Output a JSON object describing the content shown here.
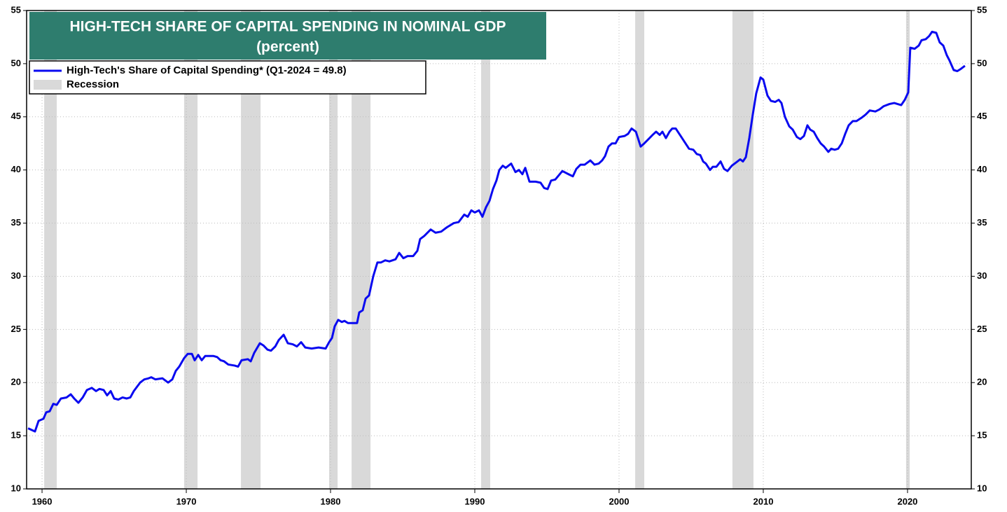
{
  "chart_data": {
    "type": "line",
    "title": "HIGH-TECH SHARE OF CAPITAL SPENDING IN NOMINAL GDP",
    "subtitle": "(percent)",
    "title_color": "#2e7d6e",
    "xlim": [
      1958.93,
      2024.42
    ],
    "xticks": [
      1960,
      1970,
      1980,
      1990,
      2000,
      2010,
      2020
    ],
    "ylim": [
      10,
      55
    ],
    "yticks": [
      10,
      15,
      20,
      25,
      30,
      35,
      40,
      45,
      50,
      55
    ],
    "y2lim": [
      10,
      55
    ],
    "y2ticks": [
      10,
      15,
      20,
      25,
      30,
      35,
      40,
      45,
      50,
      55
    ],
    "grid": true,
    "legend": "upper left",
    "shaded_regions": {
      "name": "Recession",
      "color": "#d9d9d9",
      "ranges": [
        [
          1960.15,
          1961.02
        ],
        [
          1969.85,
          1970.78
        ],
        [
          1973.79,
          1975.15
        ],
        [
          1979.9,
          1980.49
        ],
        [
          1981.46,
          1982.77
        ],
        [
          1990.44,
          1991.07
        ],
        [
          2001.12,
          2001.75
        ],
        [
          2007.86,
          2009.32
        ],
        [
          2019.9,
          2020.15
        ]
      ]
    },
    "x": [
      1959.03,
      1959.51,
      1959.76,
      1960.1,
      1960.29,
      1960.53,
      1960.78,
      1961.02,
      1961.31,
      1961.7,
      1961.99,
      1962.23,
      1962.52,
      1962.82,
      1963.11,
      1963.45,
      1963.74,
      1963.98,
      1964.27,
      1964.51,
      1964.76,
      1965.0,
      1965.29,
      1965.58,
      1965.87,
      1966.12,
      1966.36,
      1966.8,
      1967.09,
      1967.38,
      1967.57,
      1967.86,
      1968.35,
      1968.74,
      1969.03,
      1969.27,
      1969.51,
      1969.85,
      1970.1,
      1970.39,
      1970.58,
      1970.83,
      1971.07,
      1971.31,
      1971.89,
      1972.14,
      1972.38,
      1972.62,
      1972.91,
      1973.35,
      1973.59,
      1973.83,
      1974.27,
      1974.47,
      1974.71,
      1975.1,
      1975.34,
      1975.63,
      1975.87,
      1976.17,
      1976.41,
      1976.75,
      1977.04,
      1977.38,
      1977.67,
      1977.96,
      1978.25,
      1978.69,
      1979.17,
      1979.66,
      1979.9,
      1980.1,
      1980.29,
      1980.53,
      1980.78,
      1980.97,
      1981.21,
      1981.84,
      1981.99,
      1982.23,
      1982.43,
      1982.67,
      1982.96,
      1983.25,
      1983.5,
      1983.79,
      1984.08,
      1984.51,
      1984.76,
      1985.05,
      1985.34,
      1985.73,
      1986.02,
      1986.21,
      1986.5,
      1986.94,
      1987.28,
      1987.67,
      1988.06,
      1988.54,
      1988.88,
      1989.27,
      1989.51,
      1989.76,
      1990.0,
      1990.29,
      1990.53,
      1990.78,
      1991.02,
      1991.26,
      1991.5,
      1991.7,
      1991.94,
      1992.14,
      1992.52,
      1992.82,
      1993.06,
      1993.3,
      1993.5,
      1993.79,
      1994.22,
      1994.56,
      1994.81,
      1995.05,
      1995.29,
      1995.58,
      1996.07,
      1996.5,
      1996.8,
      1997.04,
      1997.33,
      1997.62,
      1998.01,
      1998.3,
      1998.59,
      1998.83,
      1999.03,
      1999.27,
      1999.51,
      1999.76,
      2000.0,
      2000.39,
      2000.63,
      2000.87,
      2001.17,
      2001.5,
      2001.75,
      2002.04,
      2002.33,
      2002.57,
      2002.82,
      2003.01,
      2003.25,
      2003.5,
      2003.69,
      2003.93,
      2004.27,
      2004.56,
      2004.85,
      2005.15,
      2005.39,
      2005.63,
      2005.83,
      2006.02,
      2006.31,
      2006.5,
      2006.75,
      2007.04,
      2007.28,
      2007.52,
      2007.82,
      2008.11,
      2008.4,
      2008.59,
      2008.79,
      2009.03,
      2009.27,
      2009.51,
      2009.81,
      2010.0,
      2010.29,
      2010.53,
      2010.83,
      2011.07,
      2011.26,
      2011.5,
      2011.8,
      2012.04,
      2012.33,
      2012.57,
      2012.82,
      2013.06,
      2013.25,
      2013.5,
      2013.74,
      2013.98,
      2014.22,
      2014.51,
      2014.71,
      2014.95,
      2015.19,
      2015.44,
      2015.68,
      2015.92,
      2016.21,
      2016.46,
      2016.8,
      2017.09,
      2017.38,
      2017.77,
      2018.06,
      2018.35,
      2018.74,
      2019.08,
      2019.32,
      2019.56,
      2019.81,
      2020.05,
      2020.19,
      2020.49,
      2020.78,
      2020.97,
      2021.26,
      2021.5,
      2021.7,
      2021.99,
      2022.23,
      2022.48,
      2022.72,
      2022.91,
      2023.2,
      2023.45,
      2023.69,
      2023.98
    ],
    "series": [
      {
        "name": "High-Tech's Share of Capital Spending* (Q1-2024 = 49.8)",
        "color": "#0a0af0",
        "values": [
          15.7,
          15.4,
          16.4,
          16.6,
          17.2,
          17.3,
          18.0,
          17.9,
          18.5,
          18.6,
          18.9,
          18.5,
          18.1,
          18.6,
          19.3,
          19.5,
          19.2,
          19.4,
          19.3,
          18.8,
          19.2,
          18.5,
          18.4,
          18.6,
          18.5,
          18.6,
          19.2,
          20.0,
          20.3,
          20.4,
          20.5,
          20.3,
          20.4,
          20.0,
          20.3,
          21.1,
          21.5,
          22.3,
          22.7,
          22.7,
          22.1,
          22.6,
          22.1,
          22.5,
          22.5,
          22.4,
          22.1,
          22.0,
          21.7,
          21.6,
          21.5,
          22.1,
          22.2,
          22.0,
          22.8,
          23.7,
          23.5,
          23.1,
          23.0,
          23.4,
          24.0,
          24.5,
          23.7,
          23.6,
          23.4,
          23.8,
          23.3,
          23.2,
          23.3,
          23.2,
          23.8,
          24.2,
          25.3,
          25.9,
          25.7,
          25.8,
          25.6,
          25.6,
          26.6,
          26.8,
          27.9,
          28.2,
          30.0,
          31.3,
          31.3,
          31.5,
          31.4,
          31.6,
          32.2,
          31.7,
          31.9,
          31.9,
          32.4,
          33.5,
          33.8,
          34.4,
          34.1,
          34.2,
          34.6,
          35.0,
          35.1,
          35.8,
          35.6,
          36.2,
          36.0,
          36.2,
          35.6,
          36.5,
          37.1,
          38.2,
          39.0,
          40.0,
          40.4,
          40.2,
          40.6,
          39.8,
          40.0,
          39.6,
          40.2,
          38.9,
          38.9,
          38.8,
          38.3,
          38.2,
          39.0,
          39.1,
          39.9,
          39.6,
          39.4,
          40.1,
          40.5,
          40.5,
          40.9,
          40.5,
          40.6,
          40.9,
          41.3,
          42.2,
          42.5,
          42.5,
          43.1,
          43.2,
          43.4,
          43.9,
          43.6,
          42.2,
          42.5,
          42.9,
          43.3,
          43.6,
          43.3,
          43.6,
          43.0,
          43.6,
          43.9,
          43.9,
          43.2,
          42.6,
          42.0,
          41.9,
          41.5,
          41.4,
          40.8,
          40.6,
          40.0,
          40.3,
          40.3,
          40.8,
          40.1,
          39.9,
          40.4,
          40.7,
          41.0,
          40.8,
          41.2,
          43.0,
          45.2,
          47.2,
          48.7,
          48.5,
          47.0,
          46.5,
          46.4,
          46.6,
          46.3,
          45.0,
          44.1,
          43.8,
          43.1,
          42.9,
          43.2,
          44.2,
          43.8,
          43.6,
          43.0,
          42.5,
          42.2,
          41.7,
          42.0,
          41.9,
          42.0,
          42.5,
          43.4,
          44.2,
          44.6,
          44.6,
          44.9,
          45.2,
          45.6,
          45.5,
          45.7,
          46.0,
          46.2,
          46.3,
          46.2,
          46.1,
          46.6,
          47.3,
          51.5,
          51.4,
          51.7,
          52.2,
          52.3,
          52.6,
          53.0,
          52.9,
          52.0,
          51.7,
          50.8,
          50.3,
          49.4,
          49.3,
          49.5,
          49.8
        ]
      }
    ]
  }
}
